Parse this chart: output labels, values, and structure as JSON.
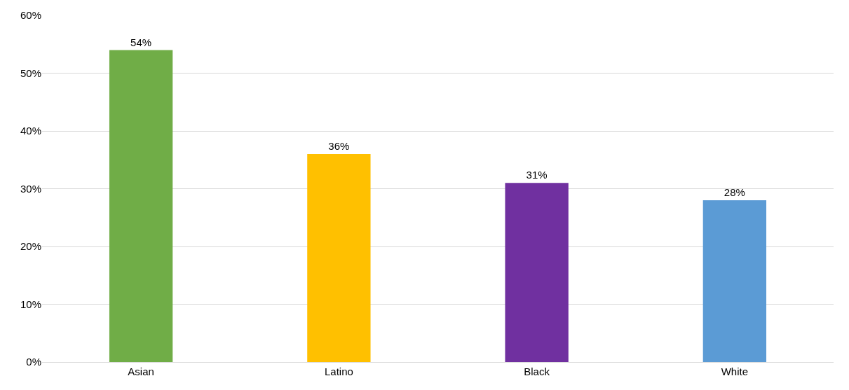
{
  "chart_data": {
    "type": "bar",
    "categories": [
      "Asian",
      "Latino",
      "Black",
      "White"
    ],
    "values": [
      54,
      36,
      31,
      28
    ],
    "colors": [
      "#70ad47",
      "#ffc000",
      "#7030a0",
      "#5b9bd5"
    ],
    "ylim": [
      0,
      60
    ],
    "yticks": [
      {
        "value": 0,
        "label": "0%"
      },
      {
        "value": 10,
        "label": "10%"
      },
      {
        "value": 20,
        "label": "20%"
      },
      {
        "value": 30,
        "label": "30%"
      },
      {
        "value": 40,
        "label": "40%"
      },
      {
        "value": 50,
        "label": "50%"
      },
      {
        "value": 60,
        "label": "60%"
      }
    ],
    "value_labels": [
      "54%",
      "36%",
      "31%",
      "28%"
    ],
    "grid": "y"
  }
}
